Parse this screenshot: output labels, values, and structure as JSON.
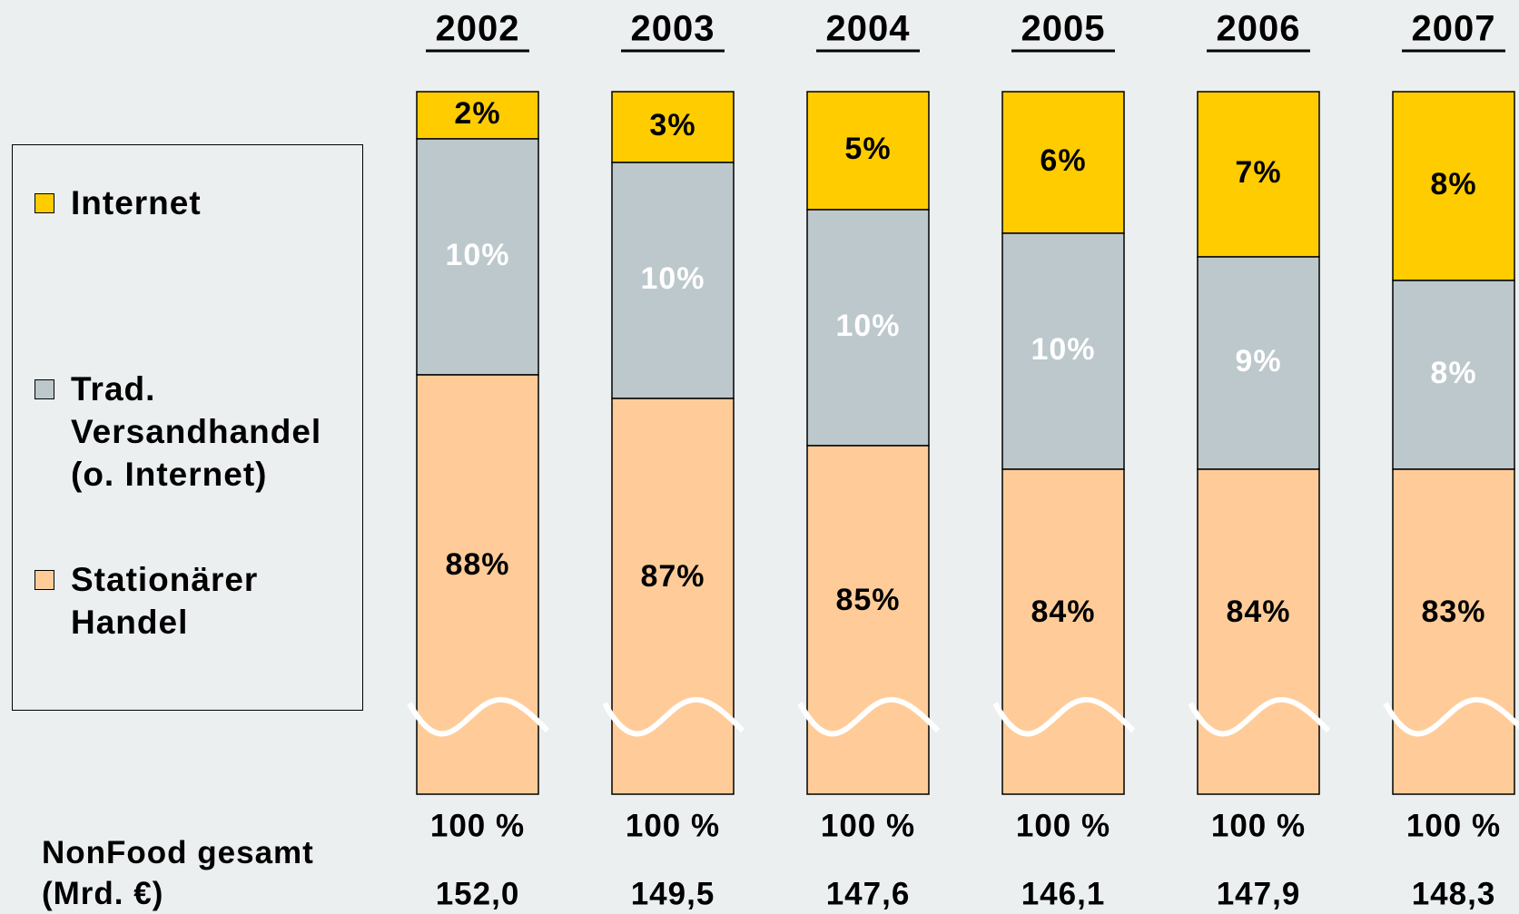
{
  "chart_data": {
    "type": "stacked_bar",
    "categories": [
      "2002",
      "2003",
      "2004",
      "2005",
      "2006",
      "2007"
    ],
    "series": [
      {
        "name": "Stationärer Handel",
        "color": "#ffcc99",
        "label_color": "#000000",
        "values": [
          88,
          87,
          85,
          84,
          84,
          83
        ],
        "value_labels": [
          "88%",
          "87%",
          "85%",
          "84%",
          "84%",
          "83%"
        ]
      },
      {
        "name": "Trad. Versandhandel (o. Internet)",
        "color": "#bcc8cc",
        "label_color": "#ffffff",
        "values": [
          10,
          10,
          10,
          10,
          9,
          8
        ],
        "value_labels": [
          "10%",
          "10%",
          "10%",
          "10%",
          "9%",
          "8%"
        ]
      },
      {
        "name": "Internet",
        "color": "#ffcc00",
        "label_color": "#000000",
        "values": [
          2,
          3,
          5,
          6,
          7,
          8
        ],
        "value_labels": [
          "2%",
          "3%",
          "5%",
          "6%",
          "7%",
          "8%"
        ]
      }
    ],
    "share_total_labels": [
      "100 %",
      "100 %",
      "100 %",
      "100 %",
      "100 %",
      "100 %"
    ],
    "row_label": "NonFood gesamt (Mrd. €)",
    "row_values": [
      "152,0",
      "149,5",
      "147,6",
      "146,1",
      "147,9",
      "148,3"
    ],
    "axis_break": true
  }
}
